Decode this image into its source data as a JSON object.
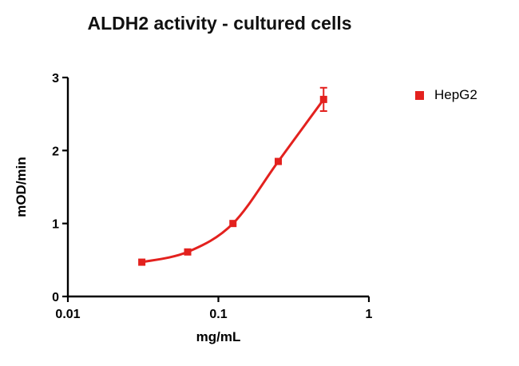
{
  "chart_data": {
    "type": "scatter",
    "title": "ALDH2 activity - cultured cells",
    "xlabel": "mg/mL",
    "ylabel": "mOD/min",
    "x_scale": "log",
    "xlim": [
      0.01,
      1
    ],
    "ylim": [
      0,
      3
    ],
    "grid": false,
    "legend_position": "right",
    "x_ticks": [
      {
        "value": 0.01,
        "label": "0.01"
      },
      {
        "value": 0.1,
        "label": "0.1"
      },
      {
        "value": 1,
        "label": "1"
      }
    ],
    "y_ticks": [
      {
        "value": 0,
        "label": "0"
      },
      {
        "value": 1,
        "label": "1"
      },
      {
        "value": 2,
        "label": "2"
      },
      {
        "value": 3,
        "label": "3"
      }
    ],
    "series": [
      {
        "name": "HepG2",
        "color": "#E3211E",
        "marker": "square",
        "fit": "sigmoidal",
        "x": [
          0.031,
          0.0625,
          0.125,
          0.25,
          0.5
        ],
        "y": [
          0.47,
          0.61,
          1.0,
          1.85,
          2.7
        ],
        "y_err": [
          0,
          0,
          0,
          0,
          0.16
        ]
      }
    ]
  },
  "colors": {
    "axis": "#000000",
    "background": "#FFFFFF",
    "series_red": "#E3211E"
  }
}
